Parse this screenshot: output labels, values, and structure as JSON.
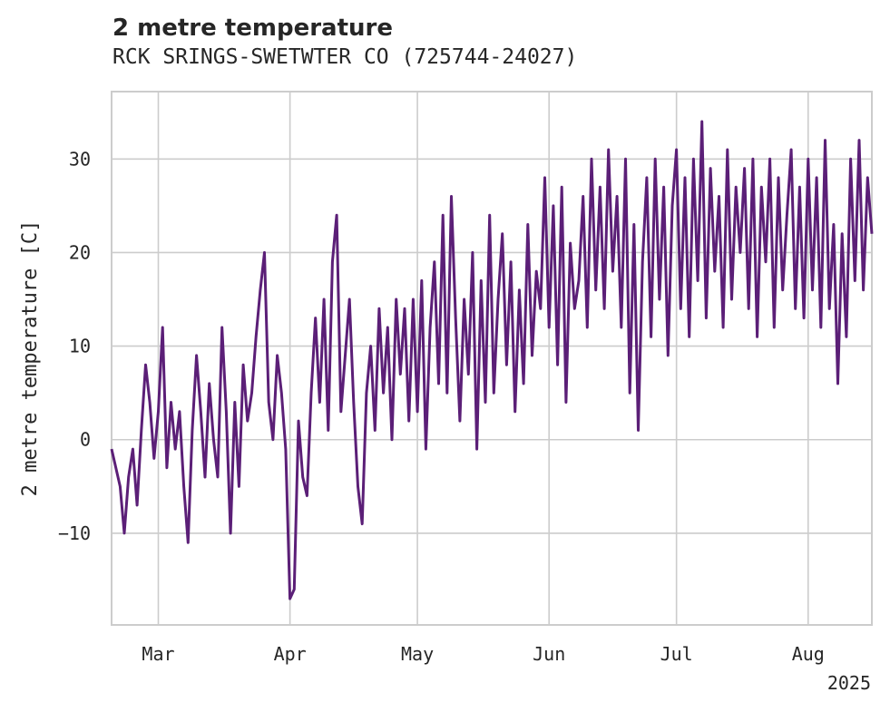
{
  "chart_data": {
    "type": "line",
    "title": "2 metre temperature",
    "subtitle": "RCK SRINGS-SWETWTER CO (725744-24027)",
    "xlabel": "",
    "ylabel": "2 metre temperature [C]",
    "x_range": [
      "2025-02-18",
      "2025-08-16"
    ],
    "ylim": [
      -19.8,
      37.2
    ],
    "x_ticks": [
      {
        "date": "2025-03-01",
        "label": "Mar"
      },
      {
        "date": "2025-04-01",
        "label": "Apr"
      },
      {
        "date": "2025-05-01",
        "label": "May"
      },
      {
        "date": "2025-06-01",
        "label": "Jun"
      },
      {
        "date": "2025-07-01",
        "label": "Jul"
      },
      {
        "date": "2025-08-01",
        "label": "Aug"
      }
    ],
    "x_offset_label": "2025",
    "y_ticks": [
      -10,
      0,
      10,
      20,
      30
    ],
    "grid": true,
    "line_color": "#5b1f77",
    "series": [
      {
        "values": [
          [
            "2025-02-18",
            -1
          ],
          [
            "2025-02-19",
            -3
          ],
          [
            "2025-02-20",
            -5
          ],
          [
            "2025-02-21",
            -10
          ],
          [
            "2025-02-22",
            -4
          ],
          [
            "2025-02-23",
            -1
          ],
          [
            "2025-02-24",
            -7
          ],
          [
            "2025-02-25",
            1
          ],
          [
            "2025-02-26",
            8
          ],
          [
            "2025-02-27",
            4
          ],
          [
            "2025-02-28",
            -2
          ],
          [
            "2025-03-01",
            3
          ],
          [
            "2025-03-02",
            12
          ],
          [
            "2025-03-03",
            -3
          ],
          [
            "2025-03-04",
            4
          ],
          [
            "2025-03-05",
            -1
          ],
          [
            "2025-03-06",
            3
          ],
          [
            "2025-03-07",
            -5
          ],
          [
            "2025-03-08",
            -11
          ],
          [
            "2025-03-09",
            1
          ],
          [
            "2025-03-10",
            9
          ],
          [
            "2025-03-11",
            3
          ],
          [
            "2025-03-12",
            -4
          ],
          [
            "2025-03-13",
            6
          ],
          [
            "2025-03-14",
            0
          ],
          [
            "2025-03-15",
            -4
          ],
          [
            "2025-03-16",
            12
          ],
          [
            "2025-03-17",
            3
          ],
          [
            "2025-03-18",
            -10
          ],
          [
            "2025-03-19",
            4
          ],
          [
            "2025-03-20",
            -5
          ],
          [
            "2025-03-21",
            8
          ],
          [
            "2025-03-22",
            2
          ],
          [
            "2025-03-23",
            5
          ],
          [
            "2025-03-24",
            11
          ],
          [
            "2025-03-25",
            16
          ],
          [
            "2025-03-26",
            20
          ],
          [
            "2025-03-27",
            4
          ],
          [
            "2025-03-28",
            0
          ],
          [
            "2025-03-29",
            9
          ],
          [
            "2025-03-30",
            5
          ],
          [
            "2025-03-31",
            -1
          ],
          [
            "2025-04-01",
            -17
          ],
          [
            "2025-04-02",
            -16
          ],
          [
            "2025-04-03",
            2
          ],
          [
            "2025-04-04",
            -4
          ],
          [
            "2025-04-05",
            -6
          ],
          [
            "2025-04-06",
            5
          ],
          [
            "2025-04-07",
            13
          ],
          [
            "2025-04-08",
            4
          ],
          [
            "2025-04-09",
            15
          ],
          [
            "2025-04-10",
            1
          ],
          [
            "2025-04-11",
            19
          ],
          [
            "2025-04-12",
            24
          ],
          [
            "2025-04-13",
            3
          ],
          [
            "2025-04-14",
            9
          ],
          [
            "2025-04-15",
            15
          ],
          [
            "2025-04-16",
            4
          ],
          [
            "2025-04-17",
            -5
          ],
          [
            "2025-04-18",
            -9
          ],
          [
            "2025-04-19",
            5
          ],
          [
            "2025-04-20",
            10
          ],
          [
            "2025-04-21",
            1
          ],
          [
            "2025-04-22",
            14
          ],
          [
            "2025-04-23",
            5
          ],
          [
            "2025-04-24",
            12
          ],
          [
            "2025-04-25",
            0
          ],
          [
            "2025-04-26",
            15
          ],
          [
            "2025-04-27",
            7
          ],
          [
            "2025-04-28",
            14
          ],
          [
            "2025-04-29",
            2
          ],
          [
            "2025-04-30",
            15
          ],
          [
            "2025-05-01",
            3
          ],
          [
            "2025-05-02",
            17
          ],
          [
            "2025-05-03",
            -1
          ],
          [
            "2025-05-04",
            12
          ],
          [
            "2025-05-05",
            19
          ],
          [
            "2025-05-06",
            6
          ],
          [
            "2025-05-07",
            24
          ],
          [
            "2025-05-08",
            5
          ],
          [
            "2025-05-09",
            26
          ],
          [
            "2025-05-10",
            13
          ],
          [
            "2025-05-11",
            2
          ],
          [
            "2025-05-12",
            15
          ],
          [
            "2025-05-13",
            7
          ],
          [
            "2025-05-14",
            20
          ],
          [
            "2025-05-15",
            -1
          ],
          [
            "2025-05-16",
            17
          ],
          [
            "2025-05-17",
            4
          ],
          [
            "2025-05-18",
            24
          ],
          [
            "2025-05-19",
            5
          ],
          [
            "2025-05-20",
            15
          ],
          [
            "2025-05-21",
            22
          ],
          [
            "2025-05-22",
            8
          ],
          [
            "2025-05-23",
            19
          ],
          [
            "2025-05-24",
            3
          ],
          [
            "2025-05-25",
            16
          ],
          [
            "2025-05-26",
            6
          ],
          [
            "2025-05-27",
            23
          ],
          [
            "2025-05-28",
            9
          ],
          [
            "2025-05-29",
            18
          ],
          [
            "2025-05-30",
            14
          ],
          [
            "2025-05-31",
            28
          ],
          [
            "2025-06-01",
            12
          ],
          [
            "2025-06-02",
            25
          ],
          [
            "2025-06-03",
            8
          ],
          [
            "2025-06-04",
            27
          ],
          [
            "2025-06-05",
            4
          ],
          [
            "2025-06-06",
            21
          ],
          [
            "2025-06-07",
            14
          ],
          [
            "2025-06-08",
            17
          ],
          [
            "2025-06-09",
            26
          ],
          [
            "2025-06-10",
            12
          ],
          [
            "2025-06-11",
            30
          ],
          [
            "2025-06-12",
            16
          ],
          [
            "2025-06-13",
            27
          ],
          [
            "2025-06-14",
            14
          ],
          [
            "2025-06-15",
            31
          ],
          [
            "2025-06-16",
            18
          ],
          [
            "2025-06-17",
            26
          ],
          [
            "2025-06-18",
            12
          ],
          [
            "2025-06-19",
            30
          ],
          [
            "2025-06-20",
            5
          ],
          [
            "2025-06-21",
            23
          ],
          [
            "2025-06-22",
            1
          ],
          [
            "2025-06-23",
            19
          ],
          [
            "2025-06-24",
            28
          ],
          [
            "2025-06-25",
            11
          ],
          [
            "2025-06-26",
            30
          ],
          [
            "2025-06-27",
            15
          ],
          [
            "2025-06-28",
            27
          ],
          [
            "2025-06-29",
            9
          ],
          [
            "2025-06-30",
            25
          ],
          [
            "2025-07-01",
            31
          ],
          [
            "2025-07-02",
            14
          ],
          [
            "2025-07-03",
            28
          ],
          [
            "2025-07-04",
            11
          ],
          [
            "2025-07-05",
            30
          ],
          [
            "2025-07-06",
            17
          ],
          [
            "2025-07-07",
            34
          ],
          [
            "2025-07-08",
            13
          ],
          [
            "2025-07-09",
            29
          ],
          [
            "2025-07-10",
            18
          ],
          [
            "2025-07-11",
            26
          ],
          [
            "2025-07-12",
            12
          ],
          [
            "2025-07-13",
            31
          ],
          [
            "2025-07-14",
            15
          ],
          [
            "2025-07-15",
            27
          ],
          [
            "2025-07-16",
            20
          ],
          [
            "2025-07-17",
            29
          ],
          [
            "2025-07-18",
            14
          ],
          [
            "2025-07-19",
            30
          ],
          [
            "2025-07-20",
            11
          ],
          [
            "2025-07-21",
            27
          ],
          [
            "2025-07-22",
            19
          ],
          [
            "2025-07-23",
            30
          ],
          [
            "2025-07-24",
            12
          ],
          [
            "2025-07-25",
            28
          ],
          [
            "2025-07-26",
            16
          ],
          [
            "2025-07-27",
            24
          ],
          [
            "2025-07-28",
            31
          ],
          [
            "2025-07-29",
            14
          ],
          [
            "2025-07-30",
            27
          ],
          [
            "2025-07-31",
            13
          ],
          [
            "2025-08-01",
            30
          ],
          [
            "2025-08-02",
            16
          ],
          [
            "2025-08-03",
            28
          ],
          [
            "2025-08-04",
            12
          ],
          [
            "2025-08-05",
            32
          ],
          [
            "2025-08-06",
            14
          ],
          [
            "2025-08-07",
            23
          ],
          [
            "2025-08-08",
            6
          ],
          [
            "2025-08-09",
            22
          ],
          [
            "2025-08-10",
            11
          ],
          [
            "2025-08-11",
            30
          ],
          [
            "2025-08-12",
            17
          ],
          [
            "2025-08-13",
            32
          ],
          [
            "2025-08-14",
            16
          ],
          [
            "2025-08-15",
            28
          ],
          [
            "2025-08-16",
            22
          ]
        ]
      }
    ]
  }
}
